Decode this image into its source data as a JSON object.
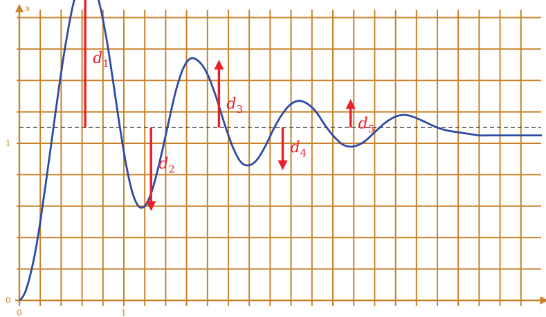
{
  "chart_data": {
    "type": "line",
    "ylabel": "s",
    "xlabel": "",
    "xlim": [
      0,
      5.0
    ],
    "ylim": [
      0,
      2.1
    ],
    "x_ticks": [
      "0",
      "1"
    ],
    "x_tick_values": [
      0,
      1
    ],
    "y_ticks": [
      "0",
      "1"
    ],
    "y_tick_values": [
      0,
      1
    ],
    "grid": true,
    "colors": {
      "grid": "#c8822a",
      "axis": "#c8822a",
      "curve": "#2e4aa0",
      "arrows": "#e8202a",
      "reference": "#555555",
      "labels": "#c8822a"
    },
    "reference_level": 1.1,
    "series": [
      {
        "x": [
          0,
          0.03,
          0.06,
          0.1,
          0.15,
          0.2,
          0.26,
          0.32,
          0.38,
          0.44,
          0.5,
          0.55,
          0.6,
          0.63,
          0.67,
          0.72,
          0.78,
          0.84,
          0.9,
          0.96,
          1.02,
          1.08,
          1.14,
          1.2,
          1.26,
          1.32,
          1.38,
          1.44,
          1.5,
          1.57,
          1.64,
          1.72,
          1.8,
          1.88,
          1.96,
          2.04,
          2.12,
          2.2,
          2.28,
          2.36,
          2.44,
          2.52,
          2.6,
          2.68,
          2.76,
          2.84,
          2.92,
          3.0,
          3.1,
          3.2,
          3.3,
          3.4,
          3.5,
          3.6,
          3.7,
          3.8,
          3.9,
          4.0,
          4.1,
          4.2,
          4.3,
          4.4,
          4.5,
          4.6,
          4.7,
          4.8,
          4.9,
          5.0
        ],
        "values": [
          0,
          0.02,
          0.06,
          0.15,
          0.3,
          0.5,
          0.78,
          1.07,
          1.36,
          1.62,
          1.84,
          1.97,
          2.05,
          2.08,
          2.07,
          2.0,
          1.85,
          1.64,
          1.38,
          1.11,
          0.87,
          0.69,
          0.6,
          0.6,
          0.68,
          0.82,
          0.99,
          1.17,
          1.34,
          1.48,
          1.54,
          1.52,
          1.44,
          1.3,
          1.13,
          0.98,
          0.88,
          0.86,
          0.9,
          0.99,
          1.1,
          1.19,
          1.25,
          1.27,
          1.25,
          1.2,
          1.12,
          1.05,
          0.99,
          0.98,
          1.01,
          1.07,
          1.13,
          1.17,
          1.18,
          1.16,
          1.13,
          1.1,
          1.08,
          1.07,
          1.06,
          1.05,
          1.05,
          1.05,
          1.05,
          1.05,
          1.05,
          1.05
        ]
      }
    ],
    "deviations": [
      {
        "label": "d",
        "sub": "1",
        "x": 0.63,
        "from": 1.1,
        "to": 2.08
      },
      {
        "label": "d",
        "sub": "2",
        "x": 1.26,
        "from": 1.1,
        "to": 0.6
      },
      {
        "label": "d",
        "sub": "3",
        "x": 1.91,
        "from": 1.1,
        "to": 1.5
      },
      {
        "label": "d",
        "sub": "4",
        "x": 2.52,
        "from": 1.1,
        "to": 0.86
      },
      {
        "label": "d",
        "sub": "5",
        "x": 3.17,
        "from": 1.1,
        "to": 1.25
      }
    ]
  }
}
